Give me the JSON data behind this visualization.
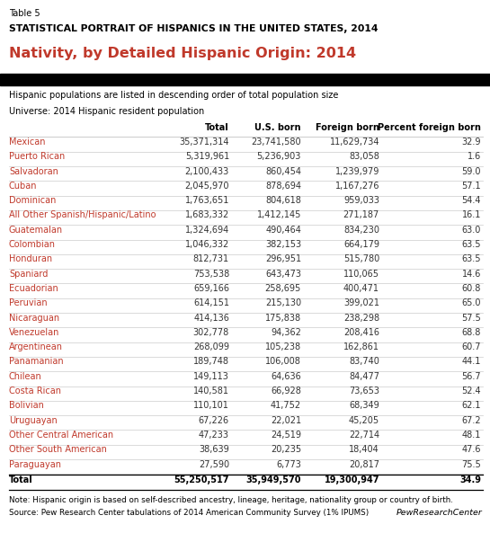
{
  "table_num": "Table 5",
  "title_main": "STATISTICAL PORTRAIT OF HISPANICS IN THE UNITED STATES, 2014",
  "title_sub": "Nativity, by Detailed Hispanic Origin: 2014",
  "subtitle_note": "Hispanic populations are listed in descending order of total population size",
  "universe_note": "Universe: 2014 Hispanic resident population",
  "col_headers": [
    "",
    "Total",
    "U.S. born",
    "Foreign born",
    "Percent foreign born"
  ],
  "rows": [
    [
      "Mexican",
      "35,371,314",
      "23,741,580",
      "11,629,734",
      "32.9"
    ],
    [
      "Puerto Rican",
      "5,319,961",
      "5,236,903",
      "83,058",
      "1.6"
    ],
    [
      "Salvadoran",
      "2,100,433",
      "860,454",
      "1,239,979",
      "59.0"
    ],
    [
      "Cuban",
      "2,045,970",
      "878,694",
      "1,167,276",
      "57.1"
    ],
    [
      "Dominican",
      "1,763,651",
      "804,618",
      "959,033",
      "54.4"
    ],
    [
      "All Other Spanish/Hispanic/Latino",
      "1,683,332",
      "1,412,145",
      "271,187",
      "16.1"
    ],
    [
      "Guatemalan",
      "1,324,694",
      "490,464",
      "834,230",
      "63.0"
    ],
    [
      "Colombian",
      "1,046,332",
      "382,153",
      "664,179",
      "63.5"
    ],
    [
      "Honduran",
      "812,731",
      "296,951",
      "515,780",
      "63.5"
    ],
    [
      "Spaniard",
      "753,538",
      "643,473",
      "110,065",
      "14.6"
    ],
    [
      "Ecuadorian",
      "659,166",
      "258,695",
      "400,471",
      "60.8"
    ],
    [
      "Peruvian",
      "614,151",
      "215,130",
      "399,021",
      "65.0"
    ],
    [
      "Nicaraguan",
      "414,136",
      "175,838",
      "238,298",
      "57.5"
    ],
    [
      "Venezuelan",
      "302,778",
      "94,362",
      "208,416",
      "68.8"
    ],
    [
      "Argentinean",
      "268,099",
      "105,238",
      "162,861",
      "60.7"
    ],
    [
      "Panamanian",
      "189,748",
      "106,008",
      "83,740",
      "44.1"
    ],
    [
      "Chilean",
      "149,113",
      "64,636",
      "84,477",
      "56.7"
    ],
    [
      "Costa Rican",
      "140,581",
      "66,928",
      "73,653",
      "52.4"
    ],
    [
      "Bolivian",
      "110,101",
      "41,752",
      "68,349",
      "62.1"
    ],
    [
      "Uruguayan",
      "67,226",
      "22,021",
      "45,205",
      "67.2"
    ],
    [
      "Other Central American",
      "47,233",
      "24,519",
      "22,714",
      "48.1"
    ],
    [
      "Other South American",
      "38,639",
      "20,235",
      "18,404",
      "47.6"
    ],
    [
      "Paraguayan",
      "27,590",
      "6,773",
      "20,817",
      "75.5"
    ]
  ],
  "total_row": [
    "Total",
    "55,250,517",
    "35,949,570",
    "19,300,947",
    "34.9"
  ],
  "note_text": "Note: Hispanic origin is based on self-described ancestry, lineage, heritage, nationality group or country of birth.",
  "source_text": "Source: Pew Research Center tabulations of 2014 American Community Survey (1% IPUMS)",
  "logo_text": "PewResearchCenter",
  "orange_color": "#c0392b",
  "black_bar_color": "#000000",
  "row_line_color": "#cccccc",
  "dark_gray": "#333333",
  "fig_width": 5.45,
  "fig_height": 6.03,
  "dpi": 100
}
